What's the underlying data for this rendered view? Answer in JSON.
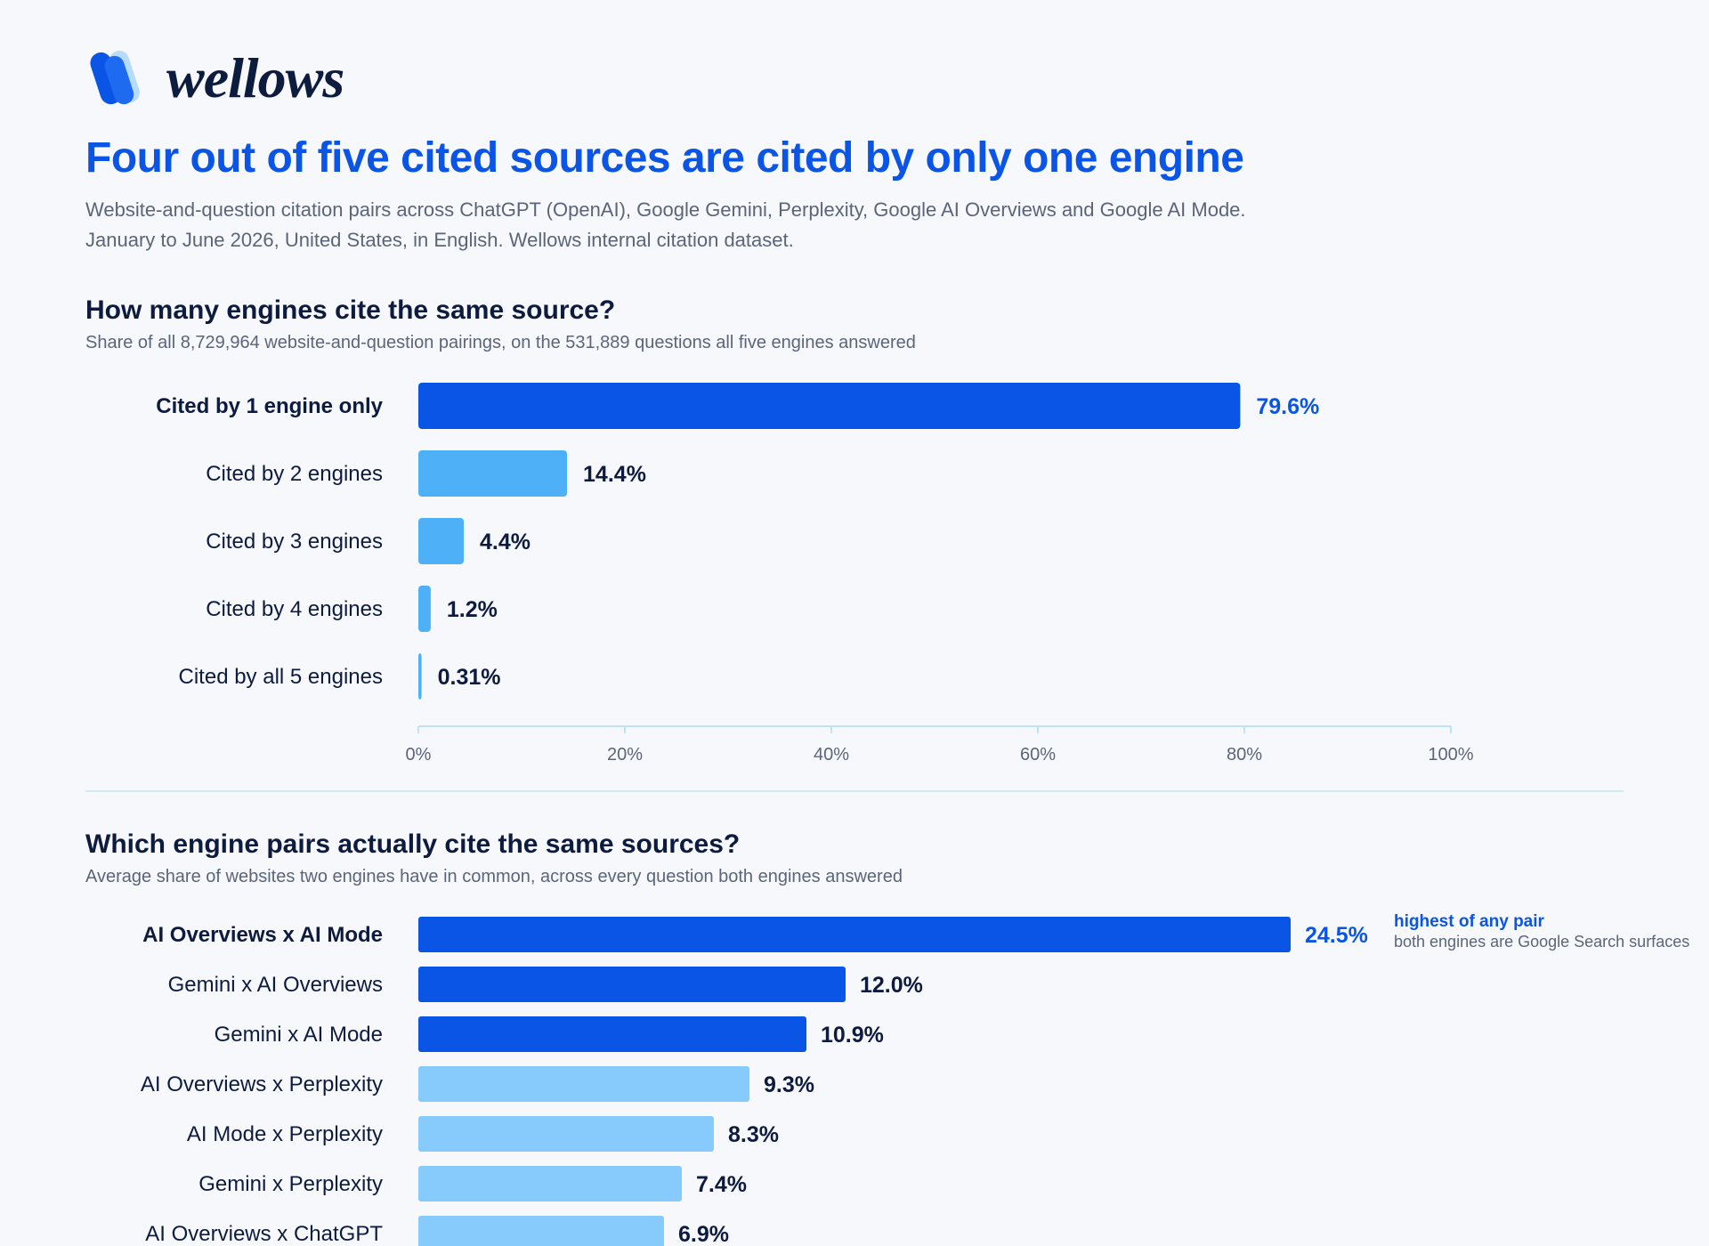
{
  "brand": {
    "name": "wellows",
    "logo_icon": "wellows-logo-icon",
    "colors": {
      "dark_blue": "#0a55e6",
      "mid_blue": "#4eb0f7",
      "light_blue": "#86cbfb",
      "navy": "#0d1b3e"
    }
  },
  "headline": "Four out of five cited sources are cited by only one engine",
  "subtitle": {
    "line1": "Website-and-question citation pairs across ChatGPT (OpenAI), Google Gemini, Perplexity, Google AI Overviews and Google AI Mode.",
    "line2": "January to June 2026, United States, in English. Wellows internal citation dataset."
  },
  "chart_data": [
    {
      "type": "bar",
      "orientation": "horizontal",
      "title": "How many engines cite the same source?",
      "subtitle": "Share of all 8,729,964 website-and-question pairings, on the 531,889 questions all five engines answered",
      "categories": [
        "Cited by 1 engine only",
        "Cited by 2 engines",
        "Cited by 3 engines",
        "Cited by 4 engines",
        "Cited by all 5 engines"
      ],
      "values": [
        79.6,
        14.4,
        4.4,
        1.2,
        0.31
      ],
      "value_labels": [
        "79.6%",
        "14.4%",
        "4.4%",
        "1.2%",
        "0.31%"
      ],
      "highlight_index": 0,
      "bar_colors": [
        "#0a55e6",
        "#4eb0f7",
        "#4eb0f7",
        "#4eb0f7",
        "#4eb0f7"
      ],
      "xlim": [
        0,
        100
      ],
      "ticks": [
        0,
        20,
        40,
        60,
        80,
        100
      ],
      "tick_labels": [
        "0%",
        "20%",
        "40%",
        "60%",
        "80%",
        "100%"
      ],
      "grid": false
    },
    {
      "type": "bar",
      "orientation": "horizontal",
      "title": "Which engine pairs actually cite the same sources?",
      "subtitle": "Average share of websites two engines have in common, across every question both engines answered",
      "categories": [
        "AI Overviews x AI Mode",
        "Gemini x AI Overviews",
        "Gemini x AI Mode",
        "AI Overviews x Perplexity",
        "AI Mode x Perplexity",
        "Gemini x Perplexity",
        "AI Overviews x ChatGPT"
      ],
      "values": [
        24.5,
        12.0,
        10.9,
        9.3,
        8.3,
        7.4,
        6.9
      ],
      "value_labels": [
        "24.5%",
        "12.0%",
        "10.9%",
        "9.3%",
        "8.3%",
        "7.4%",
        "6.9%"
      ],
      "highlight_index": 0,
      "bar_colors": [
        "#0a55e6",
        "#0a55e6",
        "#0a55e6",
        "#86cbfb",
        "#86cbfb",
        "#86cbfb",
        "#86cbfb"
      ],
      "annotation": {
        "title": "highest of any pair",
        "subtitle": "both engines are Google Search surfaces"
      },
      "grid": false
    }
  ]
}
